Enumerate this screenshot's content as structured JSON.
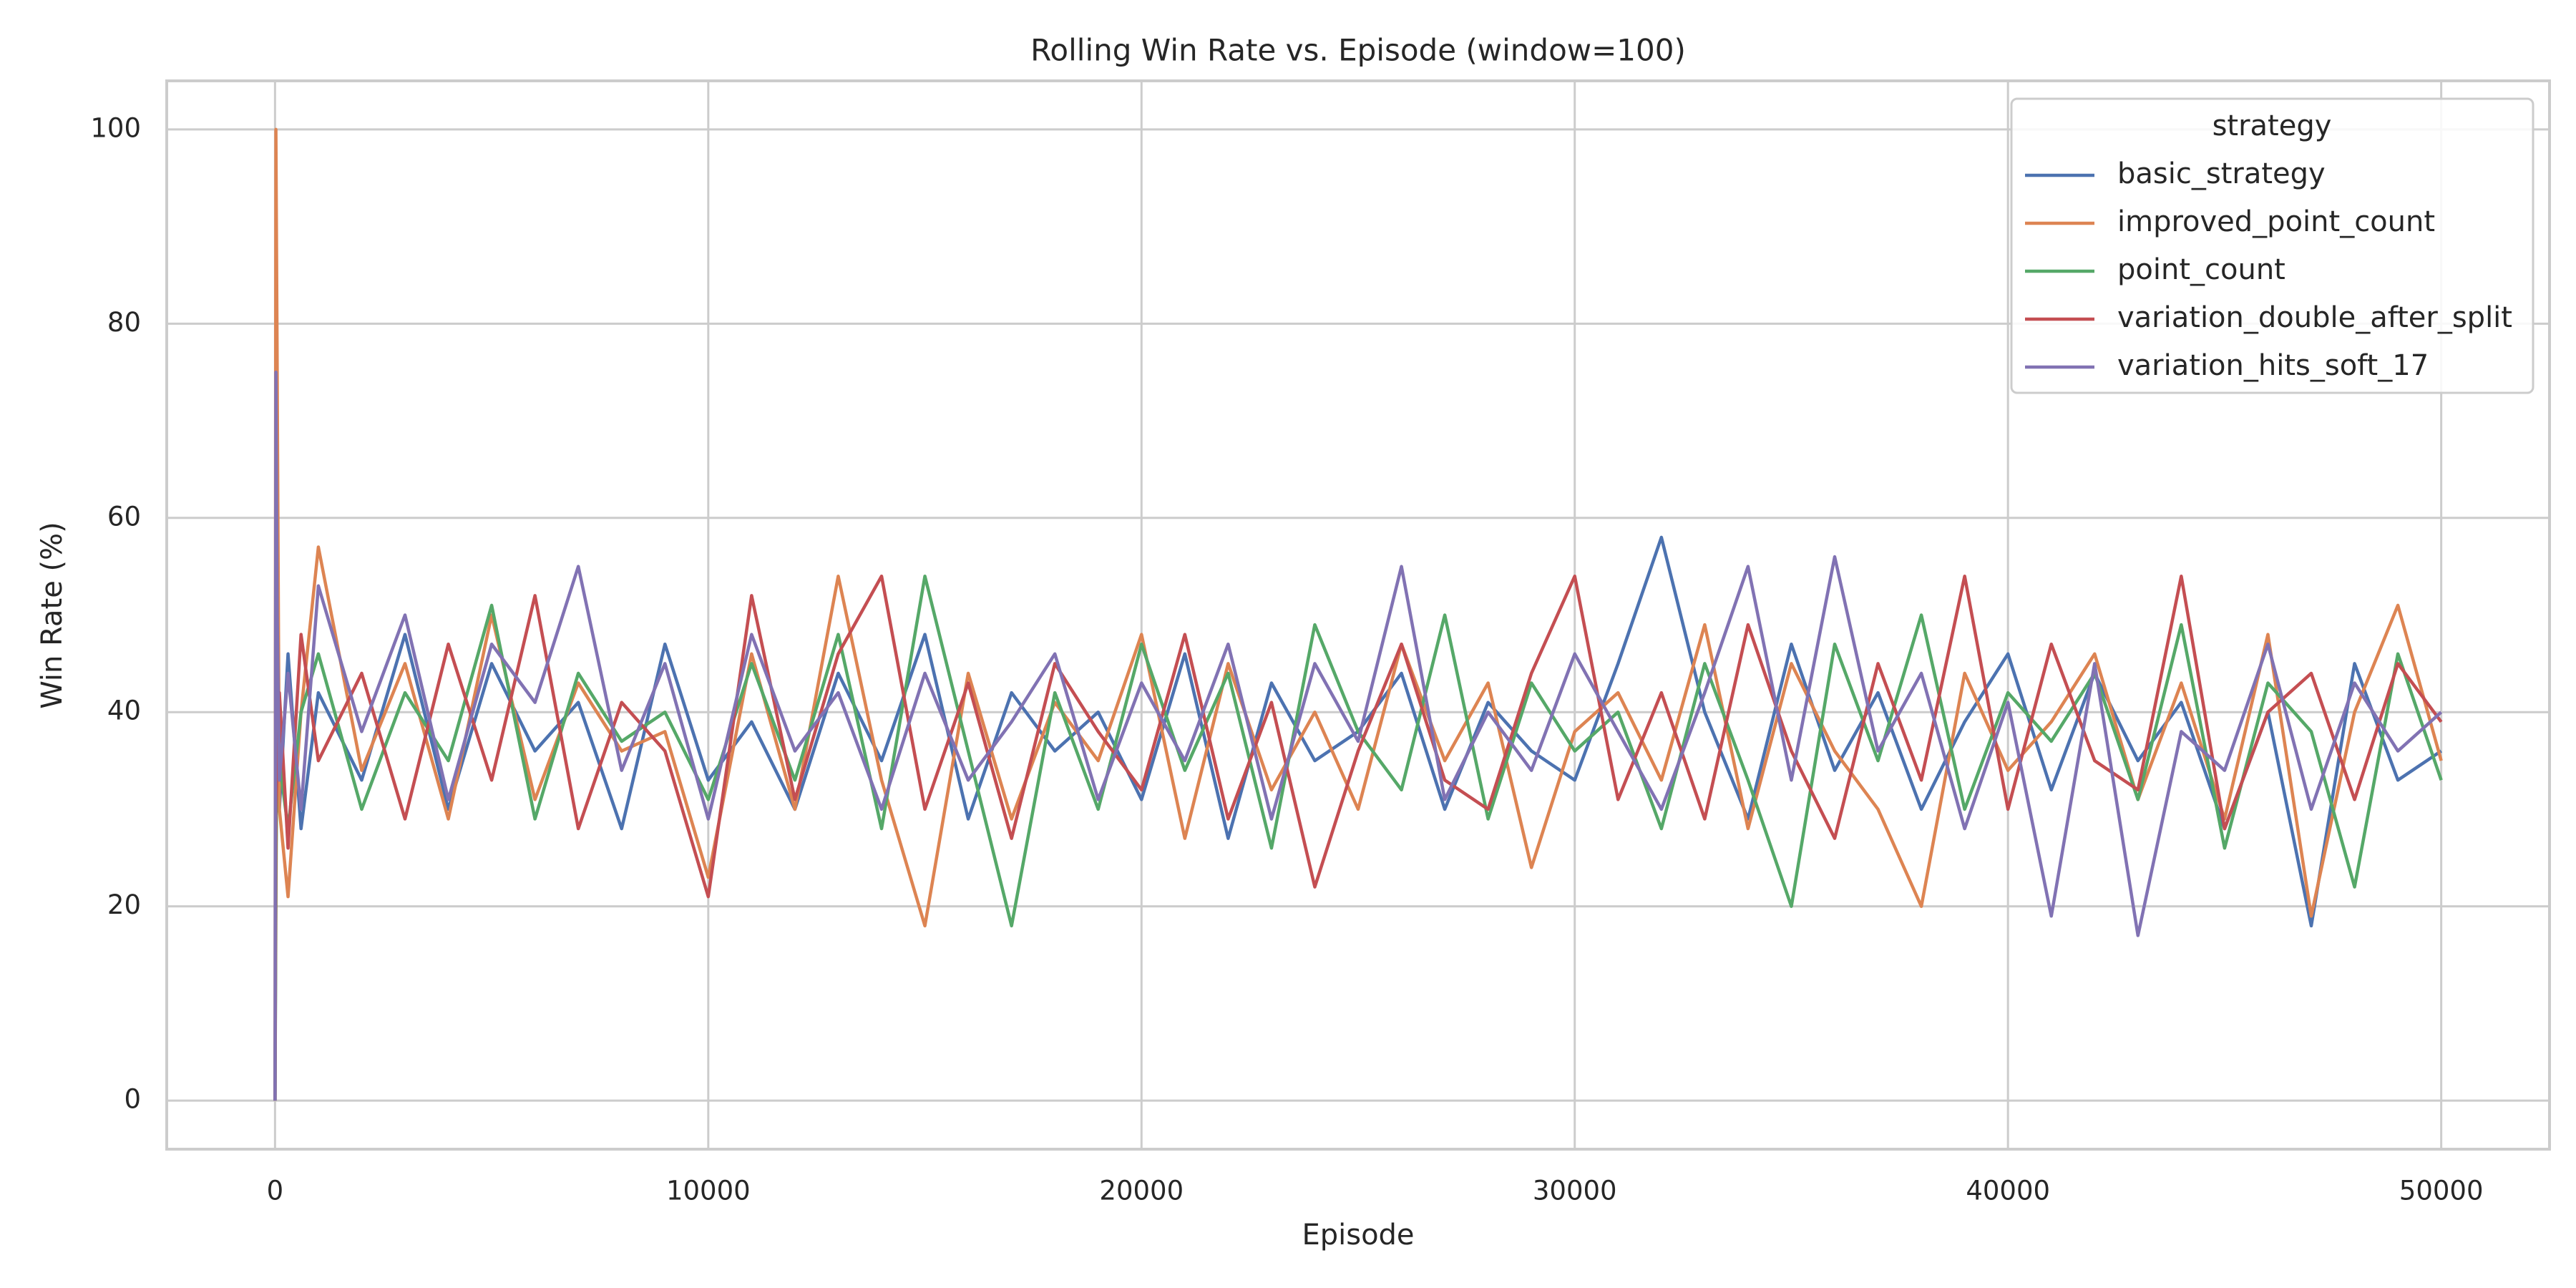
{
  "chart_data": {
    "type": "line",
    "title": "Rolling Win Rate vs. Episode (window=100)",
    "x_label": "Episode",
    "y_label": "Win Rate (%)",
    "xlim": [
      -2500,
      52500
    ],
    "ylim": [
      -5,
      105
    ],
    "xticks": [
      0,
      10000,
      20000,
      30000,
      40000,
      50000
    ],
    "yticks": [
      0,
      20,
      40,
      60,
      80,
      100
    ],
    "grid": true,
    "legend_title": "strategy",
    "legend_position": "upper right",
    "x": [
      0,
      20,
      50,
      100,
      300,
      600,
      1000,
      2000,
      3000,
      4000,
      5000,
      6000,
      7000,
      8000,
      9000,
      10000,
      11000,
      12000,
      13000,
      14000,
      15000,
      16000,
      17000,
      18000,
      19000,
      20000,
      21000,
      22000,
      23000,
      24000,
      25000,
      26000,
      27000,
      28000,
      29000,
      30000,
      31000,
      32000,
      33000,
      34000,
      35000,
      36000,
      37000,
      38000,
      39000,
      40000,
      41000,
      42000,
      43000,
      44000,
      45000,
      46000,
      47000,
      48000,
      49000,
      50000
    ],
    "series": [
      {
        "name": "basic_strategy",
        "color": "#4c72b0",
        "values": [
          0,
          25,
          38,
          30,
          46,
          28,
          42,
          33,
          48,
          30,
          45,
          36,
          41,
          28,
          47,
          33,
          39,
          30,
          44,
          35,
          48,
          29,
          42,
          36,
          40,
          31,
          46,
          27,
          43,
          35,
          38,
          44,
          30,
          41,
          36,
          33,
          45,
          58,
          40,
          29,
          47,
          34,
          42,
          30,
          39,
          46,
          32,
          44,
          35,
          41,
          28,
          40,
          18,
          45,
          33,
          36
        ]
      },
      {
        "name": "improved_point_count",
        "color": "#dd8452",
        "values": [
          0,
          100,
          75,
          30,
          21,
          40,
          57,
          34,
          45,
          29,
          50,
          31,
          43,
          36,
          38,
          23,
          46,
          30,
          54,
          33,
          18,
          44,
          29,
          41,
          35,
          48,
          27,
          45,
          32,
          40,
          30,
          47,
          35,
          43,
          24,
          38,
          42,
          33,
          49,
          28,
          45,
          36,
          30,
          20,
          44,
          34,
          39,
          46,
          31,
          43,
          29,
          48,
          19,
          40,
          51,
          35
        ]
      },
      {
        "name": "point_count",
        "color": "#55a868",
        "values": [
          0,
          20,
          45,
          35,
          28,
          40,
          46,
          30,
          42,
          35,
          51,
          29,
          44,
          37,
          40,
          31,
          45,
          33,
          48,
          28,
          54,
          36,
          18,
          42,
          30,
          47,
          34,
          44,
          26,
          49,
          38,
          32,
          50,
          29,
          43,
          36,
          40,
          28,
          45,
          33,
          20,
          47,
          35,
          50,
          30,
          42,
          37,
          44,
          31,
          49,
          26,
          43,
          38,
          22,
          46,
          33
        ]
      },
      {
        "name": "variation_double_after_split",
        "color": "#c44e52",
        "values": [
          0,
          30,
          35,
          42,
          26,
          48,
          35,
          44,
          29,
          47,
          33,
          52,
          28,
          41,
          36,
          21,
          52,
          31,
          46,
          54,
          30,
          43,
          27,
          45,
          38,
          32,
          48,
          29,
          41,
          22,
          36,
          47,
          33,
          30,
          44,
          54,
          31,
          42,
          29,
          49,
          36,
          27,
          45,
          33,
          54,
          30,
          47,
          35,
          32,
          54,
          28,
          40,
          44,
          31,
          45,
          39
        ]
      },
      {
        "name": "variation_hits_soft_17",
        "color": "#8172b3",
        "values": [
          0,
          75,
          50,
          33,
          44,
          30,
          53,
          38,
          50,
          31,
          47,
          41,
          55,
          34,
          45,
          29,
          48,
          36,
          42,
          30,
          44,
          33,
          39,
          46,
          31,
          43,
          35,
          47,
          29,
          45,
          37,
          55,
          31,
          40,
          34,
          46,
          38,
          30,
          42,
          55,
          33,
          56,
          36,
          44,
          28,
          41,
          19,
          45,
          17,
          38,
          34,
          47,
          30,
          43,
          36,
          40
        ]
      }
    ]
  }
}
